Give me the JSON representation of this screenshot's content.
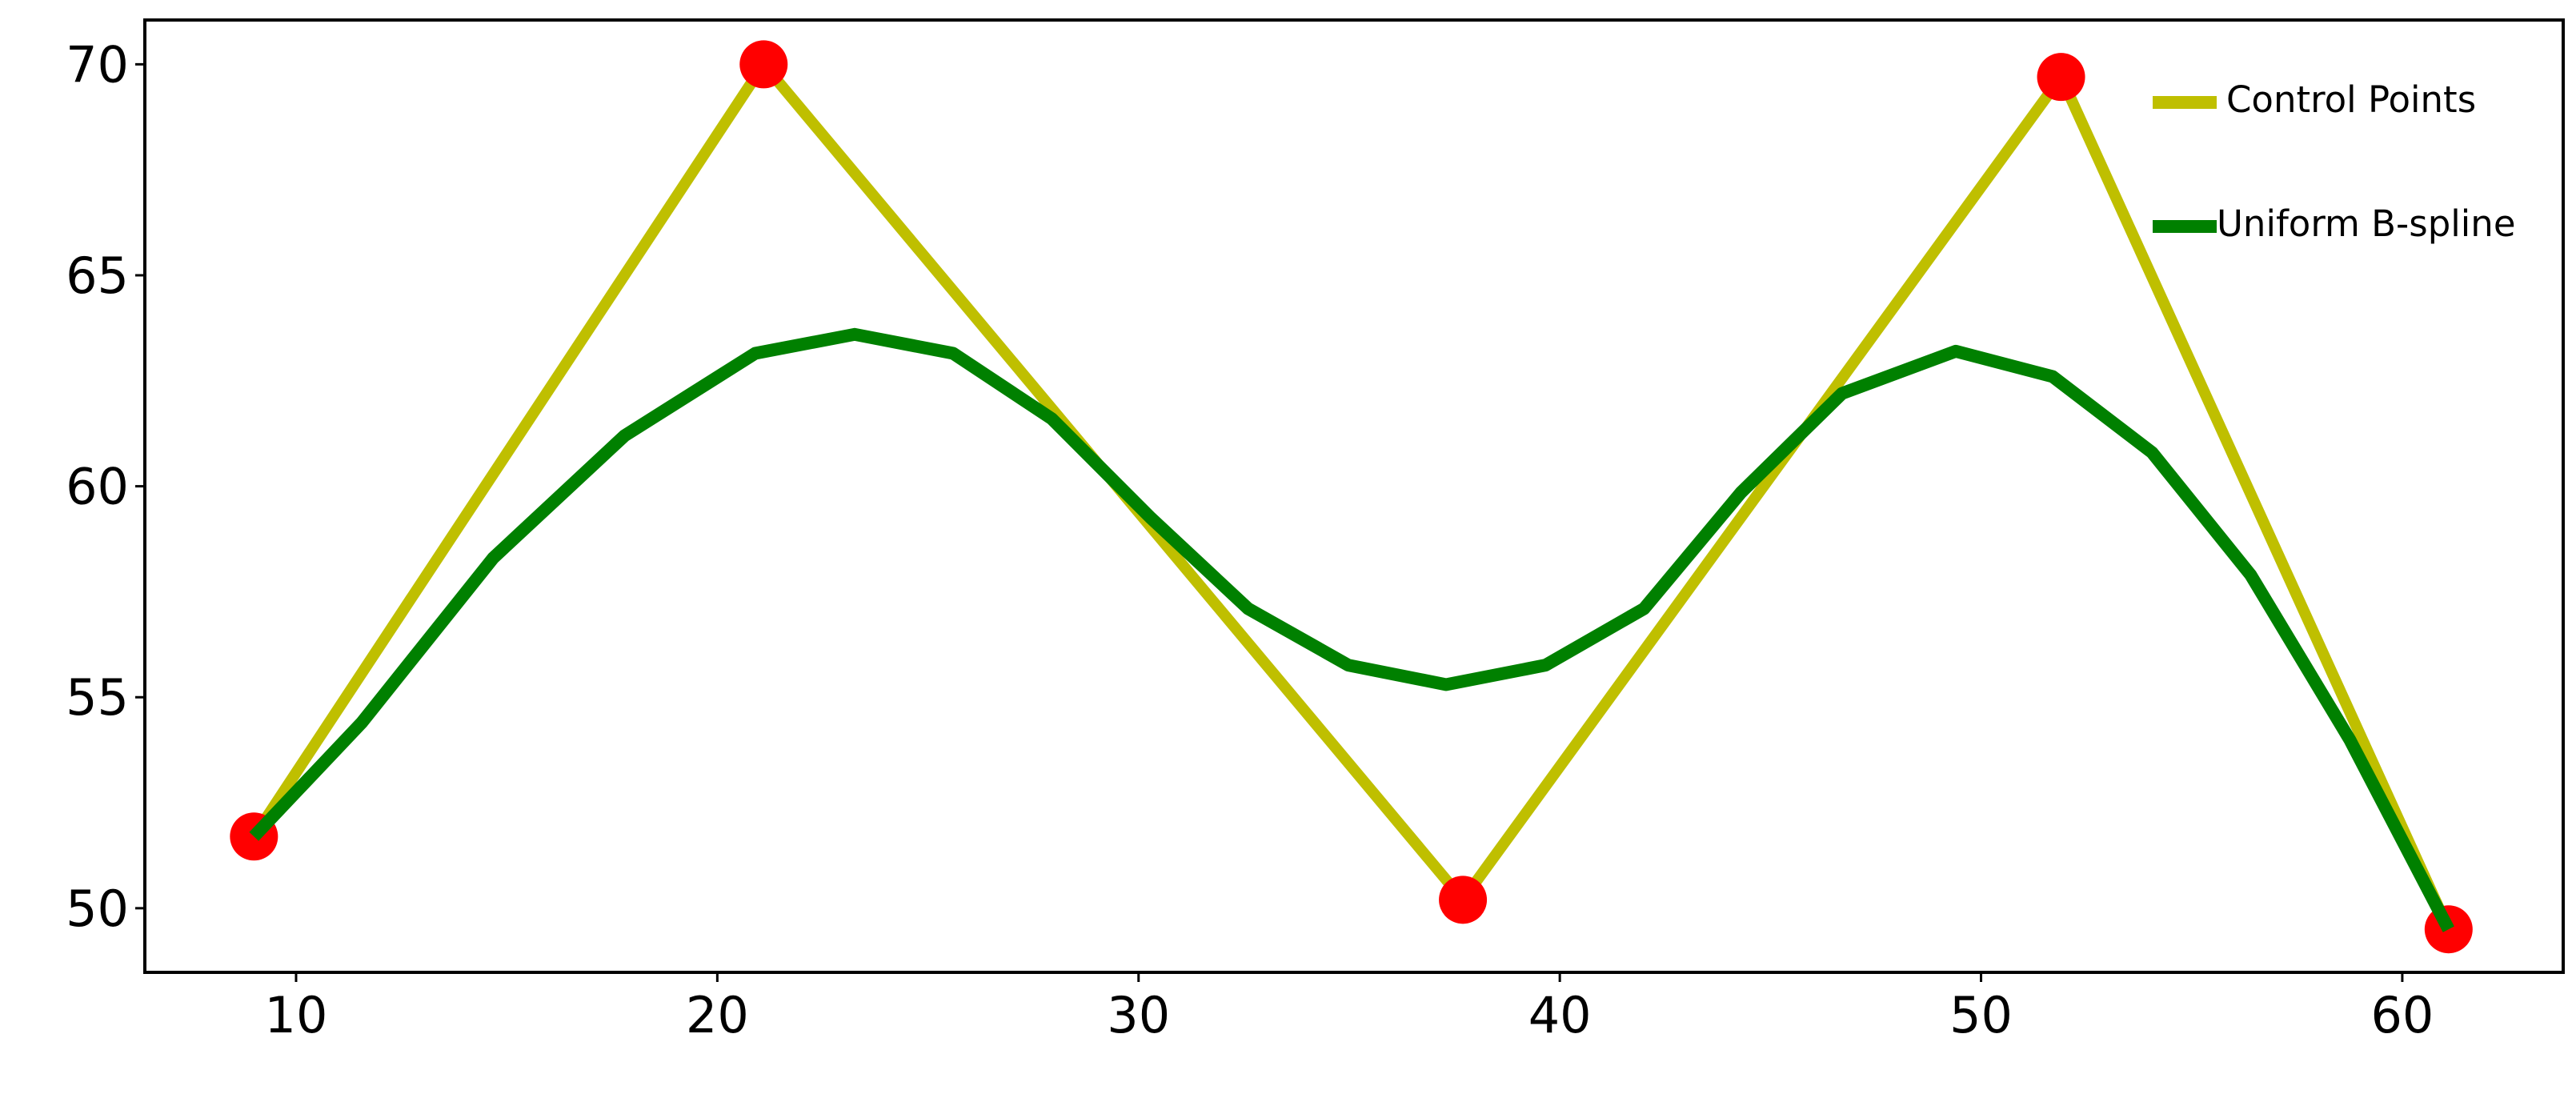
{
  "chart_data": {
    "type": "line",
    "xlim": [
      6.41,
      63.82
    ],
    "ylim": [
      48.48,
      71.05
    ],
    "xticks": [
      10,
      20,
      30,
      40,
      50,
      60
    ],
    "yticks": [
      50,
      55,
      60,
      65,
      70
    ],
    "legend": "upper right",
    "series": [
      {
        "name": "Control Points",
        "color": "#bfbf00",
        "marker_color": "#ff0000",
        "x": [
          9.0,
          21.1,
          37.7,
          51.9,
          61.1
        ],
        "values": [
          51.7,
          70.0,
          50.2,
          69.7,
          49.5
        ]
      },
      {
        "name": "Uniform B-spline",
        "color": "#008000",
        "x": [
          9.0,
          11.56,
          14.68,
          17.8,
          20.9,
          23.26,
          25.6,
          27.94,
          30.28,
          32.6,
          34.98,
          37.3,
          39.66,
          42.0,
          44.3,
          46.7,
          49.4,
          51.7,
          54.06,
          56.4,
          58.75,
          61.1
        ],
        "values": [
          51.7,
          54.4,
          58.3,
          61.2,
          63.15,
          63.6,
          63.15,
          61.6,
          59.26,
          57.1,
          55.76,
          55.3,
          55.76,
          57.1,
          59.85,
          62.2,
          63.2,
          62.6,
          60.8,
          57.9,
          54.0,
          49.5
        ]
      }
    ]
  }
}
